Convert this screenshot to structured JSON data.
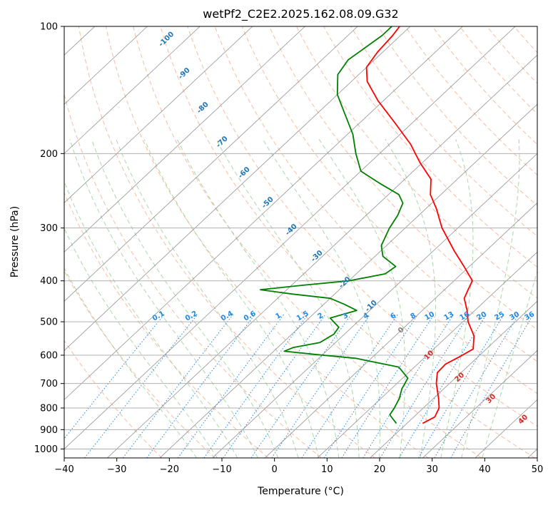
{
  "chart_data": {
    "type": "line",
    "chart_kind": "skew-t log-p diagram",
    "title": "wetPf2_C2E2.2025.162.08.09.G32",
    "xlabel": "Temperature (°C)",
    "ylabel": "Pressure (hPa)",
    "xlim": [
      -40,
      50
    ],
    "ylim": [
      1050,
      100
    ],
    "y_scale": "log",
    "x_ticks": [
      -40,
      -30,
      -20,
      -10,
      0,
      10,
      20,
      30,
      40,
      50
    ],
    "y_ticks": [
      100,
      200,
      300,
      400,
      500,
      600,
      700,
      800,
      900,
      1000
    ],
    "grid": true,
    "skewed_isotherm_labels": [
      "-100",
      "-90",
      "-80",
      "-70",
      "-60",
      "-50",
      "-40",
      "-30",
      "-20",
      "-10",
      "0",
      "10",
      "20",
      "30",
      "40"
    ],
    "mixing_ratio_labels": [
      "0.1",
      "0.2",
      "0.4",
      "0.6",
      "1",
      "1.5",
      "2",
      "3",
      "4",
      "6",
      "8",
      "10",
      "13",
      "16",
      "20",
      "25",
      "30",
      "36"
    ],
    "colors": {
      "temperature": "#ff0000",
      "dewpoint": "#008000",
      "dry_adiabat": "#f4a582",
      "moist_adiabat": "#8fc98f",
      "mixing_ratio": "#1e88e5",
      "isotherm": "#808080",
      "isotherm_label_cold": "#1f77b4",
      "isotherm_label_warm": "#d62728",
      "freezing_label": "#808080"
    },
    "series": [
      {
        "key": "temperature",
        "points": [
          {
            "p": 870,
            "t": 23.0
          },
          {
            "p": 840,
            "t": 24.0
          },
          {
            "p": 800,
            "t": 23.0
          },
          {
            "p": 760,
            "t": 21.0
          },
          {
            "p": 700,
            "t": 17.5
          },
          {
            "p": 660,
            "t": 15.5
          },
          {
            "p": 630,
            "t": 15.3
          },
          {
            "p": 605,
            "t": 16.5
          },
          {
            "p": 580,
            "t": 17.5
          },
          {
            "p": 540,
            "t": 15.0
          },
          {
            "p": 500,
            "t": 11.0
          },
          {
            "p": 470,
            "t": 8.5
          },
          {
            "p": 440,
            "t": 5.5
          },
          {
            "p": 420,
            "t": 4.5
          },
          {
            "p": 400,
            "t": 3.5
          },
          {
            "p": 370,
            "t": -1.0
          },
          {
            "p": 340,
            "t": -6.0
          },
          {
            "p": 300,
            "t": -13.0
          },
          {
            "p": 270,
            "t": -18.0
          },
          {
            "p": 250,
            "t": -22.0
          },
          {
            "p": 230,
            "t": -25.0
          },
          {
            "p": 210,
            "t": -30.5
          },
          {
            "p": 190,
            "t": -36.0
          },
          {
            "p": 170,
            "t": -43.0
          },
          {
            "p": 150,
            "t": -51.0
          },
          {
            "p": 135,
            "t": -57.0
          },
          {
            "p": 125,
            "t": -60.0
          },
          {
            "p": 115,
            "t": -61.0
          },
          {
            "p": 105,
            "t": -61.5
          },
          {
            "p": 100,
            "t": -62.0
          }
        ]
      },
      {
        "key": "dewpoint",
        "points": [
          {
            "p": 870,
            "t": 18.0
          },
          {
            "p": 850,
            "t": 16.5
          },
          {
            "p": 830,
            "t": 15.0
          },
          {
            "p": 800,
            "t": 14.5
          },
          {
            "p": 760,
            "t": 13.5
          },
          {
            "p": 720,
            "t": 12.0
          },
          {
            "p": 680,
            "t": 11.0
          },
          {
            "p": 640,
            "t": 7.0
          },
          {
            "p": 610,
            "t": -3.0
          },
          {
            "p": 598,
            "t": -11.0
          },
          {
            "p": 587,
            "t": -18.0
          },
          {
            "p": 575,
            "t": -17.0
          },
          {
            "p": 560,
            "t": -13.0
          },
          {
            "p": 535,
            "t": -12.0
          },
          {
            "p": 515,
            "t": -12.5
          },
          {
            "p": 490,
            "t": -16.0
          },
          {
            "p": 470,
            "t": -12.5
          },
          {
            "p": 455,
            "t": -16.0
          },
          {
            "p": 440,
            "t": -20.0
          },
          {
            "p": 430,
            "t": -28.0
          },
          {
            "p": 420,
            "t": -35.0
          },
          {
            "p": 410,
            "t": -28.0
          },
          {
            "p": 400,
            "t": -20.0
          },
          {
            "p": 385,
            "t": -14.5
          },
          {
            "p": 370,
            "t": -14.0
          },
          {
            "p": 350,
            "t": -18.5
          },
          {
            "p": 330,
            "t": -21.0
          },
          {
            "p": 300,
            "t": -23.0
          },
          {
            "p": 280,
            "t": -24.0
          },
          {
            "p": 262,
            "t": -25.5
          },
          {
            "p": 250,
            "t": -28.0
          },
          {
            "p": 235,
            "t": -34.0
          },
          {
            "p": 220,
            "t": -40.0
          },
          {
            "p": 200,
            "t": -44.5
          },
          {
            "p": 180,
            "t": -49.0
          },
          {
            "p": 160,
            "t": -55.0
          },
          {
            "p": 145,
            "t": -60.0
          },
          {
            "p": 130,
            "t": -64.0
          },
          {
            "p": 120,
            "t": -65.0
          },
          {
            "p": 110,
            "t": -64.0
          },
          {
            "p": 105,
            "t": -63.5
          },
          {
            "p": 100,
            "t": -63.5
          }
        ]
      }
    ]
  }
}
